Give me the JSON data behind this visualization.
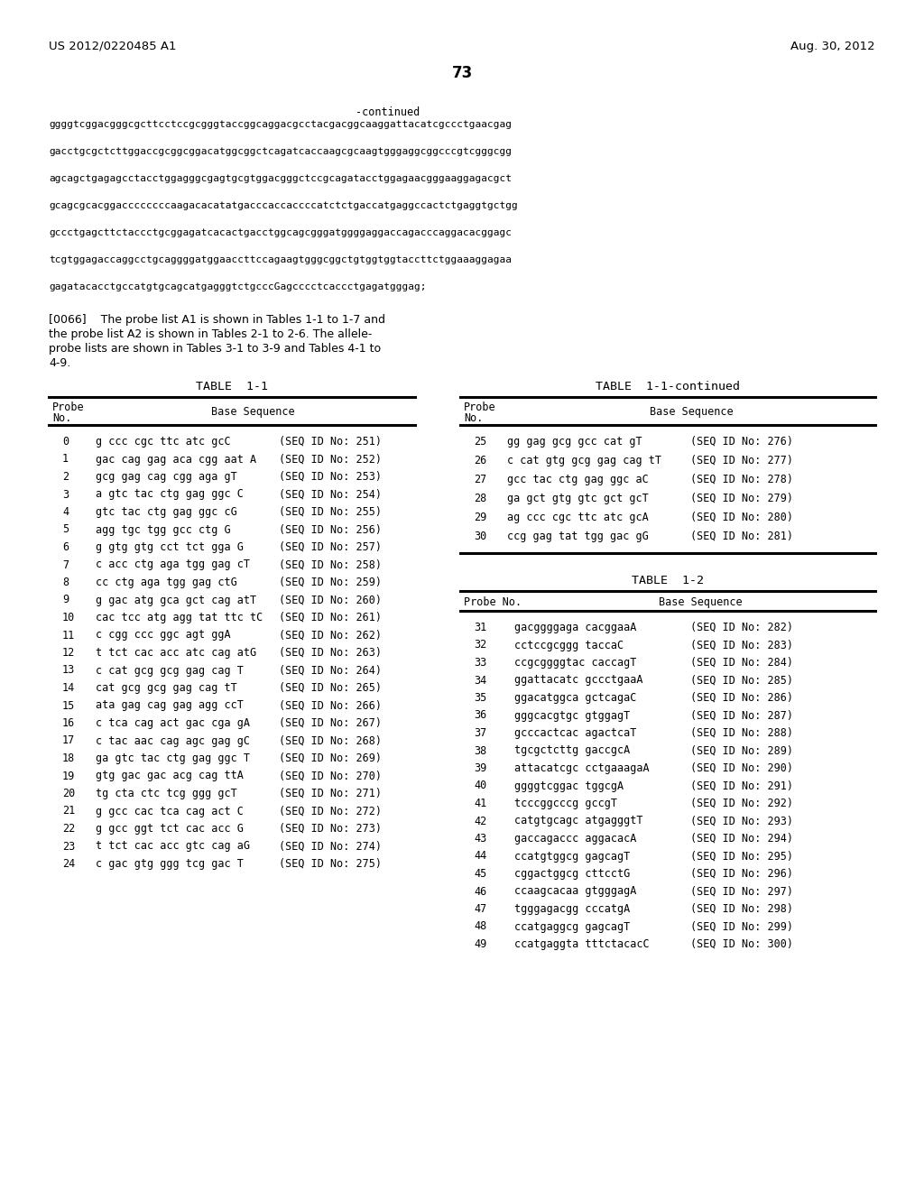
{
  "header_left": "US 2012/0220485 A1",
  "header_right": "Aug. 30, 2012",
  "page_number": "73",
  "continued_text": "-continued",
  "sequence_lines": [
    "ggggtcggacgggcgcttcctccgcgggtaccggcaggacgcctacgacggcaaggattacatcgccctgaacgag",
    "gacctgcgctcttggaccgcggcggacatggcggctcagatcaccaagcgcaagtgggaggcggcccgtcgggcgg",
    "agcagctgagagcctacctggagggcgagtgcgtggacgggctccgcagatacctggagaacgggaaggagacgct",
    "gcagcgcacggaccccccccaagacacatatgacccaccaccccatctctgaccatgaggccactctgaggtgctgg",
    "gccctgagcttctaccctgcggagatcacactgacctggcagcgggatggggaggaccagacccaggacacggagc",
    "tcgtggagaccaggcctgcaggggatggaaccttccagaagtgggcggctgtggtggtaccttctggaaaggagaa",
    "gagatacacctgccatgtgcagcatgagggtctgcccGagcccctcaccctgagatgggag;"
  ],
  "para_line1": "[0066]    The probe list A1 is shown in Tables 1-1 to 1-7 and",
  "para_line2": "the probe list A2 is shown in Tables 2-1 to 2-6. The allele-",
  "para_line3": "probe lists are shown in Tables 3-1 to 3-9 and Tables 4-1 to",
  "para_line4": "4-9.",
  "table1_title": "TABLE  1-1",
  "table1_rows": [
    [
      "0",
      "g ccc cgc ttc atc gcC",
      "(SEQ ID No: 251)"
    ],
    [
      "1",
      "gac cag gag aca cgg aat A",
      "(SEQ ID No: 252)"
    ],
    [
      "2",
      "gcg gag cag cgg aga gT",
      "(SEQ ID No: 253)"
    ],
    [
      "3",
      "a gtc tac ctg gag ggc C",
      "(SEQ ID No: 254)"
    ],
    [
      "4",
      "gtc tac ctg gag ggc cG",
      "(SEQ ID No: 255)"
    ],
    [
      "5",
      "agg tgc tgg gcc ctg G",
      "(SEQ ID No: 256)"
    ],
    [
      "6",
      "g gtg gtg cct tct gga G",
      "(SEQ ID No: 257)"
    ],
    [
      "7",
      "c acc ctg aga tgg gag cT",
      "(SEQ ID No: 258)"
    ],
    [
      "8",
      "cc ctg aga tgg gag ctG",
      "(SEQ ID No: 259)"
    ],
    [
      "9",
      "g gac atg gca gct cag atT",
      "(SEQ ID No: 260)"
    ],
    [
      "10",
      "cac tcc atg agg tat ttc tC",
      "(SEQ ID No: 261)"
    ],
    [
      "11",
      "c cgg ccc ggc agt ggA",
      "(SEQ ID No: 262)"
    ],
    [
      "12",
      "t tct cac acc atc cag atG",
      "(SEQ ID No: 263)"
    ],
    [
      "13",
      "c cat gcg gcg gag cag T",
      "(SEQ ID No: 264)"
    ],
    [
      "14",
      "cat gcg gcg gag cag tT",
      "(SEQ ID No: 265)"
    ],
    [
      "15",
      "ata gag cag gag agg ccT",
      "(SEQ ID No: 266)"
    ],
    [
      "16",
      "c tca cag act gac cga gA",
      "(SEQ ID No: 267)"
    ],
    [
      "17",
      "c tac aac cag agc gag gC",
      "(SEQ ID No: 268)"
    ],
    [
      "18",
      "ga gtc tac ctg gag ggc T",
      "(SEQ ID No: 269)"
    ],
    [
      "19",
      "gtg gac gac acg cag ttA",
      "(SEQ ID No: 270)"
    ],
    [
      "20",
      "tg cta ctc tcg ggg gcT",
      "(SEQ ID No: 271)"
    ],
    [
      "21",
      "g gcc cac tca cag act C",
      "(SEQ ID No: 272)"
    ],
    [
      "22",
      "g gcc ggt tct cac acc G",
      "(SEQ ID No: 273)"
    ],
    [
      "23",
      "t tct cac acc gtc cag aG",
      "(SEQ ID No: 274)"
    ],
    [
      "24",
      "c gac gtg ggg tcg gac T",
      "(SEQ ID No: 275)"
    ]
  ],
  "table1cont_title": "TABLE  1-1-continued",
  "table1cont_rows": [
    [
      "25",
      "gg gag gcg gcc cat gT",
      "(SEQ ID No: 276)"
    ],
    [
      "26",
      "c cat gtg gcg gag cag tT",
      "(SEQ ID No: 277)"
    ],
    [
      "27",
      "gcc tac ctg gag ggc aC",
      "(SEQ ID No: 278)"
    ],
    [
      "28",
      "ga gct gtg gtc gct gcT",
      "(SEQ ID No: 279)"
    ],
    [
      "29",
      "ag ccc cgc ttc atc gcA",
      "(SEQ ID No: 280)"
    ],
    [
      "30",
      "ccg gag tat tgg gac gG",
      "(SEQ ID No: 281)"
    ]
  ],
  "table2_title": "TABLE  1-2",
  "table2_rows": [
    [
      "31",
      "gacggggaga cacggaaA",
      "(SEQ ID No: 282)"
    ],
    [
      "32",
      "cctccgcggg taccaC",
      "(SEQ ID No: 283)"
    ],
    [
      "33",
      "ccgcggggtac caccagT",
      "(SEQ ID No: 284)"
    ],
    [
      "34",
      "ggattacatc gccctgaaA",
      "(SEQ ID No: 285)"
    ],
    [
      "35",
      "ggacatggca gctcagaC",
      "(SEQ ID No: 286)"
    ],
    [
      "36",
      "gggcacgtgc gtggagT",
      "(SEQ ID No: 287)"
    ],
    [
      "37",
      "gcccactcac agactcaT",
      "(SEQ ID No: 288)"
    ],
    [
      "38",
      "tgcgctcttg gaccgcA",
      "(SEQ ID No: 289)"
    ],
    [
      "39",
      "attacatcgc cctgaaagaA",
      "(SEQ ID No: 290)"
    ],
    [
      "40",
      "ggggtcggac tggcgA",
      "(SEQ ID No: 291)"
    ],
    [
      "41",
      "tcccggcccg gccgT",
      "(SEQ ID No: 292)"
    ],
    [
      "42",
      "catgtgcagc atgagggtT",
      "(SEQ ID No: 293)"
    ],
    [
      "43",
      "gaccagaccc aggacacA",
      "(SEQ ID No: 294)"
    ],
    [
      "44",
      "ccatgtggcg gagcagT",
      "(SEQ ID No: 295)"
    ],
    [
      "45",
      "cggactggcg cttcctG",
      "(SEQ ID No: 296)"
    ],
    [
      "46",
      "ccaagcacaa gtgggagA",
      "(SEQ ID No: 297)"
    ],
    [
      "47",
      "tgggagacgg cccatgA",
      "(SEQ ID No: 298)"
    ],
    [
      "48",
      "ccatgaggcg gagcagT",
      "(SEQ ID No: 299)"
    ],
    [
      "49",
      "ccatgaggta tttctacacC",
      "(SEQ ID No: 300)"
    ]
  ]
}
